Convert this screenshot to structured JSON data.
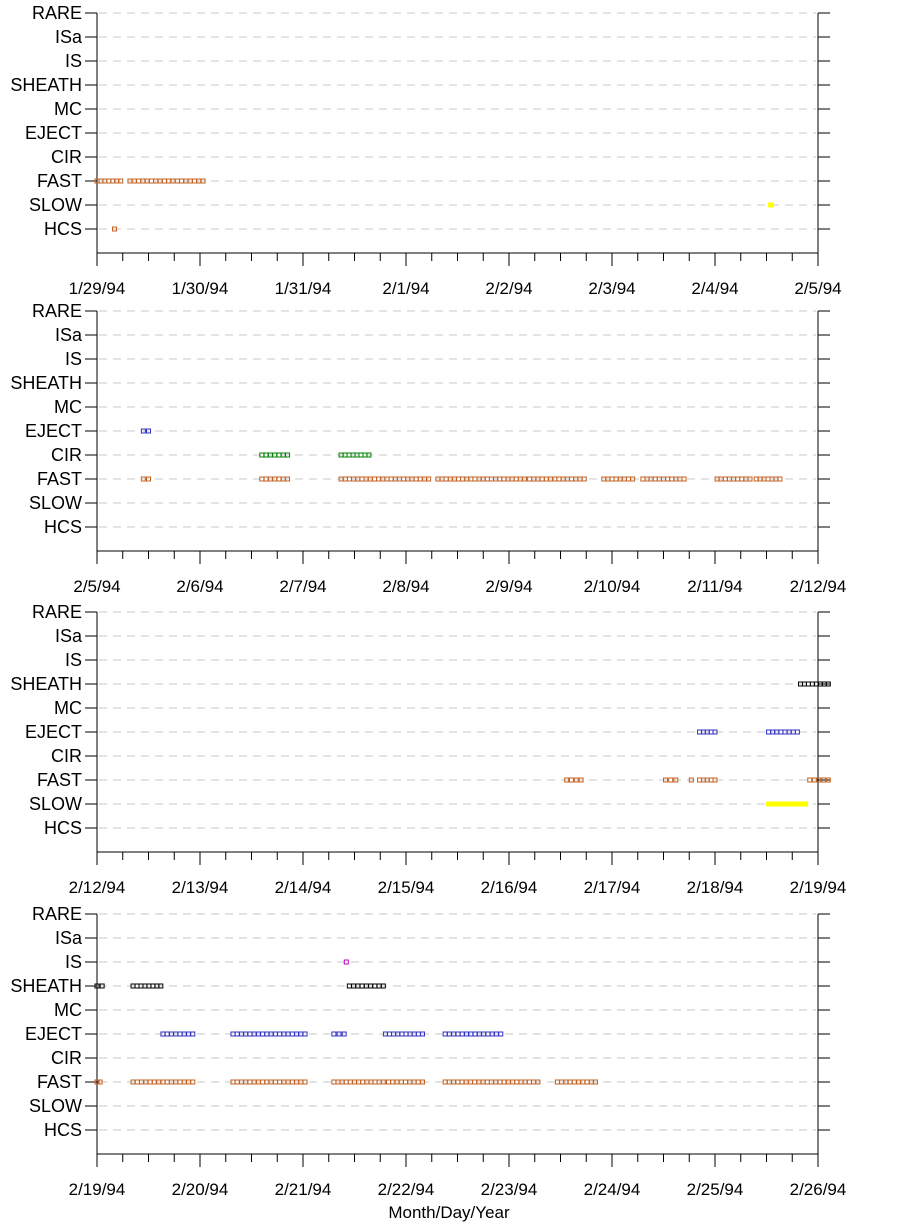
{
  "chart_data": {
    "type": "scatter",
    "categories": [
      "RARE",
      "ISa",
      "IS",
      "SHEATH",
      "MC",
      "EJECT",
      "CIR",
      "FAST",
      "SLOW",
      "HCS"
    ],
    "colors": {
      "FAST": "#c06020",
      "EJECT": "#3030c0",
      "CIR": "#008000",
      "SHEATH": "#000000",
      "SLOW": "#ffff00",
      "HCS": "#c06020",
      "IS": "#c000c0"
    },
    "xlabel": "Month/Day/Year",
    "panels": [
      {
        "x_ticks": [
          "1/29/94",
          "1/30/94",
          "1/31/94",
          "2/1/94",
          "2/2/94",
          "2/3/94",
          "2/4/94",
          "2/5/94"
        ],
        "segments": [
          {
            "category": "FAST",
            "from": 0.0,
            "to": 0.23
          },
          {
            "category": "FAST",
            "from": 0.32,
            "to": 1.03
          },
          {
            "category": "HCS",
            "from": 0.17,
            "to": 0.17
          },
          {
            "category": "SLOW",
            "from": 6.54,
            "to": 6.54,
            "filled": true
          }
        ]
      },
      {
        "x_ticks": [
          "2/5/94",
          "2/6/94",
          "2/7/94",
          "2/8/94",
          "2/9/94",
          "2/10/94",
          "2/11/94",
          "2/12/94"
        ],
        "segments": [
          {
            "category": "EJECT",
            "from": 0.45,
            "to": 0.5
          },
          {
            "category": "FAST",
            "from": 0.45,
            "to": 0.5
          },
          {
            "category": "CIR",
            "from": 1.6,
            "to": 1.85
          },
          {
            "category": "FAST",
            "from": 1.6,
            "to": 1.85
          },
          {
            "category": "CIR",
            "from": 2.37,
            "to": 2.64
          },
          {
            "category": "FAST",
            "from": 2.37,
            "to": 3.22
          },
          {
            "category": "FAST",
            "from": 3.31,
            "to": 4.15
          },
          {
            "category": "FAST",
            "from": 4.2,
            "to": 4.73
          },
          {
            "category": "FAST",
            "from": 4.92,
            "to": 5.2
          },
          {
            "category": "FAST",
            "from": 5.3,
            "to": 5.7
          },
          {
            "category": "FAST",
            "from": 6.02,
            "to": 6.34
          },
          {
            "category": "FAST",
            "from": 6.4,
            "to": 6.63
          }
        ]
      },
      {
        "x_ticks": [
          "2/12/94",
          "2/13/94",
          "2/14/94",
          "2/15/94",
          "2/16/94",
          "2/17/94",
          "2/18/94",
          "2/19/94"
        ],
        "segments": [
          {
            "category": "SHEATH",
            "from": 6.83,
            "to": 7.1
          },
          {
            "category": "EJECT",
            "from": 5.85,
            "to": 6.0
          },
          {
            "category": "EJECT",
            "from": 6.52,
            "to": 6.8
          },
          {
            "category": "FAST",
            "from": 4.56,
            "to": 4.7
          },
          {
            "category": "FAST",
            "from": 5.52,
            "to": 5.62
          },
          {
            "category": "FAST",
            "from": 5.77,
            "to": 5.77
          },
          {
            "category": "FAST",
            "from": 5.85,
            "to": 6.0
          },
          {
            "category": "FAST",
            "from": 6.92,
            "to": 7.1
          },
          {
            "category": "SLOW",
            "from": 6.52,
            "to": 6.88,
            "filled": true
          }
        ]
      },
      {
        "x_ticks": [
          "2/19/94",
          "2/20/94",
          "2/21/94",
          "2/22/94",
          "2/23/94",
          "2/24/94",
          "2/25/94",
          "2/26/94"
        ],
        "segments": [
          {
            "category": "IS",
            "from": 2.42,
            "to": 2.42
          },
          {
            "category": "SHEATH",
            "from": 0.0,
            "to": 0.05
          },
          {
            "category": "SHEATH",
            "from": 0.35,
            "to": 0.62
          },
          {
            "category": "SHEATH",
            "from": 2.45,
            "to": 2.78
          },
          {
            "category": "EJECT",
            "from": 0.64,
            "to": 0.93
          },
          {
            "category": "EJECT",
            "from": 1.32,
            "to": 2.02
          },
          {
            "category": "EJECT",
            "from": 2.3,
            "to": 2.4
          },
          {
            "category": "EJECT",
            "from": 2.8,
            "to": 3.16
          },
          {
            "category": "EJECT",
            "from": 3.38,
            "to": 3.92
          },
          {
            "category": "FAST",
            "from": 0.0,
            "to": 0.03
          },
          {
            "category": "FAST",
            "from": 0.35,
            "to": 0.93
          },
          {
            "category": "FAST",
            "from": 1.32,
            "to": 2.02
          },
          {
            "category": "FAST",
            "from": 2.3,
            "to": 2.78
          },
          {
            "category": "FAST",
            "from": 2.83,
            "to": 3.16
          },
          {
            "category": "FAST",
            "from": 3.38,
            "to": 4.28
          },
          {
            "category": "FAST",
            "from": 4.47,
            "to": 4.84
          }
        ]
      }
    ]
  }
}
